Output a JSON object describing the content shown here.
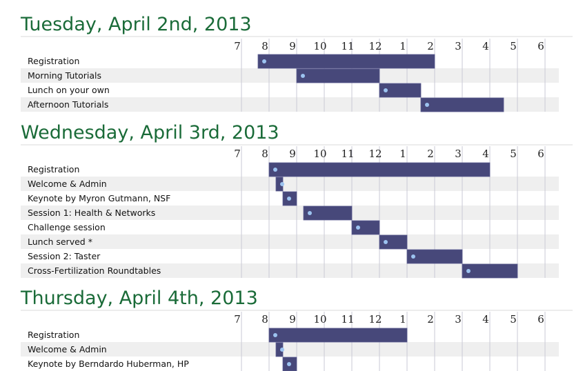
{
  "chart_data": {
    "type": "gantt",
    "hour_ticks": [
      "7",
      "8",
      "9",
      "10",
      "11",
      "12",
      "1",
      "2",
      "3",
      "4",
      "5",
      "6"
    ],
    "days": [
      {
        "title": "Tuesday, April 2nd, 2013",
        "events": [
          {
            "label": "Registration",
            "start": 7.6,
            "end": 14.0
          },
          {
            "label": "Morning Tutorials",
            "start": 9.0,
            "end": 12.0
          },
          {
            "label": "Lunch on your own",
            "start": 12.0,
            "end": 13.5
          },
          {
            "label": "Afternoon Tutorials",
            "start": 13.5,
            "end": 16.5
          }
        ]
      },
      {
        "title": "Wednesday, April 3rd, 2013",
        "events": [
          {
            "label": "Registration",
            "start": 8.0,
            "end": 16.0
          },
          {
            "label": "Welcome & Admin",
            "start": 8.25,
            "end": 8.5
          },
          {
            "label": "Keynote by Myron Gutmann, NSF",
            "start": 8.5,
            "end": 9.0
          },
          {
            "label": "Session 1: Health & Networks",
            "start": 9.25,
            "end": 11.0
          },
          {
            "label": "Challenge session",
            "start": 11.0,
            "end": 12.0
          },
          {
            "label": "Lunch served *",
            "start": 12.0,
            "end": 13.0
          },
          {
            "label": "Session 2: Taster",
            "start": 13.0,
            "end": 15.0
          },
          {
            "label": "Cross-Fertilization Roundtables",
            "start": 15.0,
            "end": 17.0
          }
        ]
      },
      {
        "title": "Thursday, April 4th, 2013",
        "events": [
          {
            "label": "Registration",
            "start": 8.0,
            "end": 13.0
          },
          {
            "label": "Welcome & Admin",
            "start": 8.25,
            "end": 8.5
          },
          {
            "label": "Keynote by Berndardo Huberman, HP",
            "start": 8.5,
            "end": 9.0
          }
        ]
      }
    ],
    "colors": {
      "bar": "#47487a",
      "bar_border": "#5a5b90",
      "marker": "#9cc3f0",
      "row_alt": "#efefef",
      "gridline": "#c8c8d6",
      "title": "#1a6b38"
    }
  }
}
